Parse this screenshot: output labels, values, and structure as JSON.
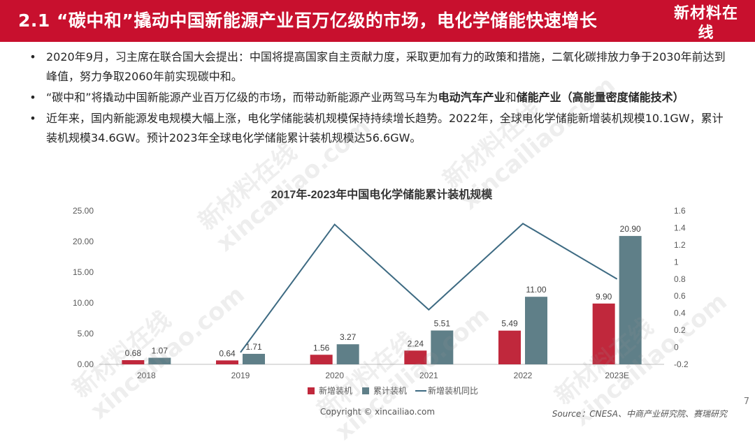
{
  "header": {
    "title": "2.1 “碳中和”撬动中国新能源产业百万亿级的市场，电化学储能快速增长",
    "logo_cn": "新材料在线",
    "logo_en": "xincailiao.com"
  },
  "bullets": [
    {
      "dot": "•",
      "text": "2020年9月，习主席在联合国大会提出：中国将提高国家自主贡献力度，采取更加有力的政策和措施，二氧化碳排放力争于2030年前达到峰值，努力争取2060年前实现碳中和。"
    },
    {
      "dot": "•",
      "text_a": "“碳中和”将撬动中国新能源产业百万亿级的市场，而带动新能源产业两驾马车为",
      "bold_a": "电动汽车产业",
      "text_b": "和",
      "bold_b": "储能产业（高能量密度储能技术）"
    },
    {
      "dot": "•",
      "text": "近年来，国内新能源发电规模大幅上涨，电化学储能装机规模保持持续增长趋势。2022年，全球电化学储能新增装机规模10.1GW，累计装机规模34.6GW。预计2023年全球电化学储能累计装机规模达56.6GW。"
    }
  ],
  "watermarks": {
    "cn": "新材料在线",
    "en": "xincailiao.com"
  },
  "chart_data": {
    "type": "bar",
    "title": "2017年-2023年中国电化学储能累计装机规模",
    "categories": [
      "2018",
      "2019",
      "2020",
      "2021",
      "2022",
      "2023E"
    ],
    "series": [
      {
        "name": "新增装机",
        "type": "bar",
        "axis": "left",
        "color": "#c0283c",
        "values": [
          0.68,
          0.64,
          1.56,
          2.24,
          5.49,
          9.9
        ],
        "labels": [
          "0.68",
          "0.64",
          "1.56",
          "2.24",
          "5.49",
          "9.90"
        ]
      },
      {
        "name": "累计装机",
        "type": "bar",
        "axis": "left",
        "color": "#5f7f88",
        "values": [
          1.07,
          1.71,
          3.27,
          5.51,
          11.0,
          20.9
        ],
        "labels": [
          "1.07",
          "1.71",
          "3.27",
          "5.51",
          "11.00",
          "20.90"
        ]
      },
      {
        "name": "新增装机同比",
        "type": "line",
        "axis": "right",
        "color": "#3d6a82",
        "values": [
          null,
          -0.06,
          1.44,
          0.44,
          1.45,
          0.8
        ]
      }
    ],
    "y_left": {
      "min": 0,
      "max": 25,
      "ticks": [
        "0.00",
        "5.00",
        "10.00",
        "15.00",
        "20.00",
        "25.00"
      ]
    },
    "y_right": {
      "min": -0.2,
      "max": 1.6,
      "ticks": [
        "-0.2",
        "0",
        "0.2",
        "0.4",
        "0.6",
        "0.8",
        "1",
        "1.2",
        "1.4",
        "1.6"
      ]
    },
    "legend_position": "bottom",
    "grid": false
  },
  "footer": {
    "copyright": "Copyright © xincailiao.com",
    "source": "Source：CNESA、中商产业研究院、赛瑞研究",
    "page": "7"
  }
}
